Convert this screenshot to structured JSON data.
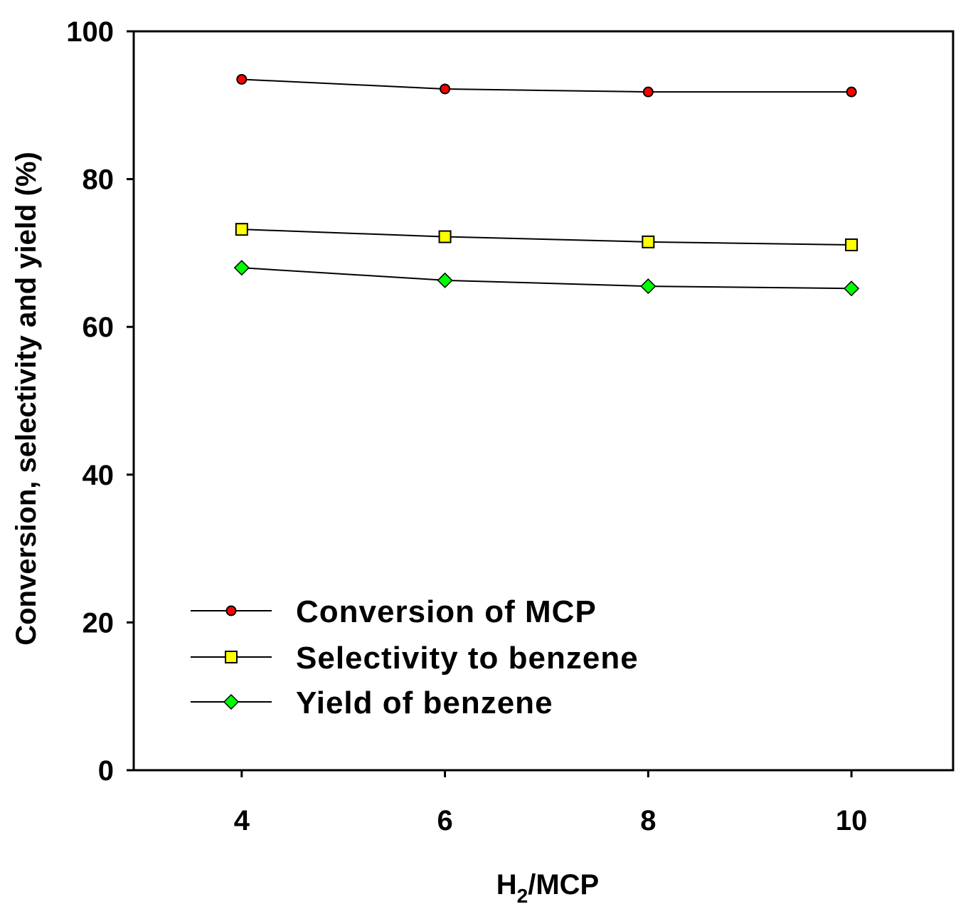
{
  "chart_data": {
    "type": "line",
    "title": "",
    "xlabel": {
      "main": "H",
      "sub": "2",
      "rest": "/MCP"
    },
    "ylabel": "Conversion, selectivity and yield (%)",
    "x": [
      4,
      6,
      8,
      10
    ],
    "xticks": [
      "4",
      "6",
      "8",
      "10"
    ],
    "yticks": [
      "0",
      "20",
      "40",
      "60",
      "80",
      "100"
    ],
    "xlim": [
      2.9375,
      11
    ],
    "ylim": [
      0,
      100
    ],
    "grid": false,
    "legend_position": "bottom-left",
    "series": [
      {
        "name": "Conversion of MCP",
        "marker": "circle",
        "color": "#ff0000",
        "values": [
          93.5,
          92.2,
          91.8,
          91.8
        ]
      },
      {
        "name": "Selectivity to benzene",
        "marker": "square",
        "color": "#ffff00",
        "values": [
          73.2,
          72.2,
          71.5,
          71.1
        ]
      },
      {
        "name": "Yield of benzene",
        "marker": "diamond",
        "color": "#00ff00",
        "values": [
          68.0,
          66.3,
          65.5,
          65.2
        ]
      }
    ]
  }
}
